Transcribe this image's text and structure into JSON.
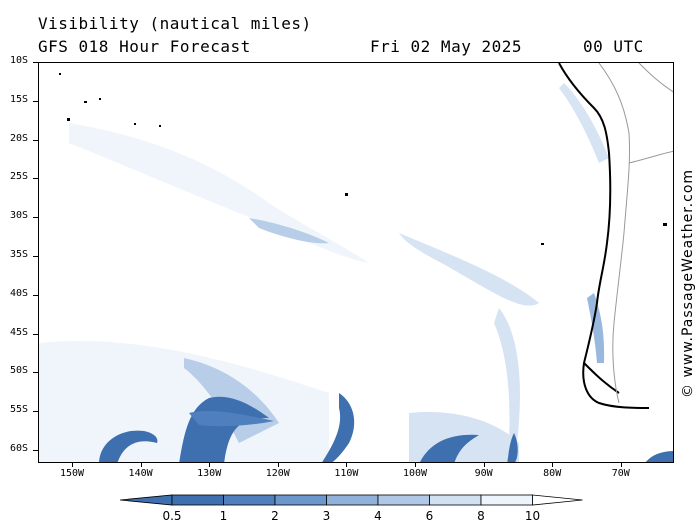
{
  "header": {
    "title": "Visibility (nautical miles)",
    "model": "GFS 018 Hour Forecast",
    "date": "Fri 02 May 2025",
    "time": "00 UTC"
  },
  "credit": "© www.PassageWeather.com",
  "map": {
    "lat_labels": [
      "10S",
      "15S",
      "20S",
      "25S",
      "30S",
      "35S",
      "40S",
      "45S",
      "50S",
      "55S",
      "60S"
    ],
    "lon_labels": [
      "150W",
      "140W",
      "130W",
      "120W",
      "110W",
      "100W",
      "90W",
      "80W",
      "70W"
    ],
    "lon_range": [
      -155,
      -66
    ],
    "lat_range": [
      -10,
      -62
    ]
  },
  "legend": {
    "labels": [
      "0.5",
      "1",
      "2",
      "3",
      "4",
      "6",
      "8",
      "10"
    ],
    "colors": [
      "#3e6fae",
      "#4f7fbd",
      "#6b97cd",
      "#8fb1da",
      "#b0c8e6",
      "#d2e1f2",
      "#eef4fb"
    ]
  }
}
